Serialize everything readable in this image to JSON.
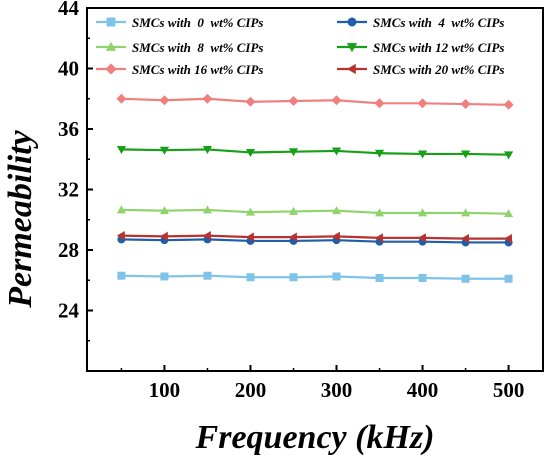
{
  "chart_data": {
    "type": "line",
    "title": "",
    "xlabel": "Frequency (kHz)",
    "ylabel": "Permeability",
    "xlim": [
      10,
      540
    ],
    "ylim": [
      20,
      44
    ],
    "xticks": [
      100,
      200,
      300,
      400,
      500
    ],
    "yticks": [
      24,
      28,
      32,
      36,
      40,
      44
    ],
    "grid": false,
    "legend_position": "top",
    "x": [
      50,
      100,
      150,
      200,
      250,
      300,
      350,
      400,
      450,
      500
    ],
    "series": [
      {
        "name": "SMCs with  0  wt% CIPs",
        "color": "#7fc3e8",
        "marker": "square",
        "values": [
          26.3,
          26.25,
          26.3,
          26.2,
          26.2,
          26.25,
          26.15,
          26.15,
          26.1,
          26.1
        ]
      },
      {
        "name": "SMCs with  4  wt% CIPs",
        "color": "#1f5fa8",
        "marker": "circle",
        "values": [
          28.7,
          28.65,
          28.7,
          28.6,
          28.6,
          28.65,
          28.55,
          28.55,
          28.5,
          28.5
        ]
      },
      {
        "name": "SMCs with  8  wt% CIPs",
        "color": "#8fd36b",
        "marker": "triangle-up",
        "values": [
          30.65,
          30.6,
          30.65,
          30.5,
          30.55,
          30.6,
          30.45,
          30.45,
          30.45,
          30.4
        ]
      },
      {
        "name": "SMCs with 12 wt% CIPs",
        "color": "#17a017",
        "marker": "triangle-down",
        "values": [
          34.65,
          34.6,
          34.65,
          34.45,
          34.5,
          34.55,
          34.4,
          34.35,
          34.35,
          34.3
        ]
      },
      {
        "name": "SMCs with 16 wt% CIPs",
        "color": "#f08080",
        "marker": "diamond",
        "values": [
          38.0,
          37.9,
          38.0,
          37.8,
          37.85,
          37.9,
          37.7,
          37.7,
          37.65,
          37.6
        ]
      },
      {
        "name": "SMCs with 20 wt% CIPs",
        "color": "#b8322e",
        "marker": "triangle-left",
        "values": [
          28.95,
          28.9,
          28.95,
          28.85,
          28.85,
          28.9,
          28.8,
          28.8,
          28.75,
          28.75
        ]
      }
    ]
  }
}
